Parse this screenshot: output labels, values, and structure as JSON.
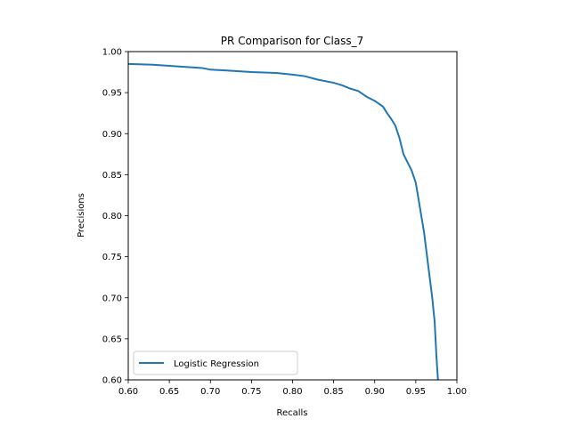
{
  "chart_data": {
    "type": "line",
    "title": "PR Comparison for Class_7",
    "xlabel": "Recalls",
    "ylabel": "Precisions",
    "xlim": [
      0.6,
      1.0
    ],
    "ylim": [
      0.6,
      1.0
    ],
    "xticks": [
      "0.60",
      "0.65",
      "0.70",
      "0.75",
      "0.80",
      "0.85",
      "0.90",
      "0.95",
      "1.00"
    ],
    "yticks": [
      "0.60",
      "0.65",
      "0.70",
      "0.75",
      "0.80",
      "0.85",
      "0.90",
      "0.95",
      "1.00"
    ],
    "grid": false,
    "legend_position": "lower-left",
    "series": [
      {
        "name": "Logistic Regression",
        "color": "#1f77b4",
        "x": [
          0.6,
          0.63,
          0.66,
          0.69,
          0.7,
          0.72,
          0.75,
          0.78,
          0.8,
          0.815,
          0.83,
          0.85,
          0.86,
          0.87,
          0.88,
          0.89,
          0.9,
          0.91,
          0.915,
          0.92,
          0.925,
          0.93,
          0.935,
          0.94,
          0.945,
          0.95,
          0.955,
          0.96,
          0.965,
          0.97,
          0.973,
          0.975,
          0.977
        ],
        "y": [
          0.985,
          0.984,
          0.982,
          0.98,
          0.978,
          0.977,
          0.975,
          0.974,
          0.972,
          0.97,
          0.966,
          0.962,
          0.959,
          0.955,
          0.952,
          0.945,
          0.94,
          0.933,
          0.925,
          0.918,
          0.91,
          0.895,
          0.875,
          0.865,
          0.855,
          0.84,
          0.81,
          0.78,
          0.74,
          0.7,
          0.67,
          0.63,
          0.6
        ]
      }
    ]
  }
}
